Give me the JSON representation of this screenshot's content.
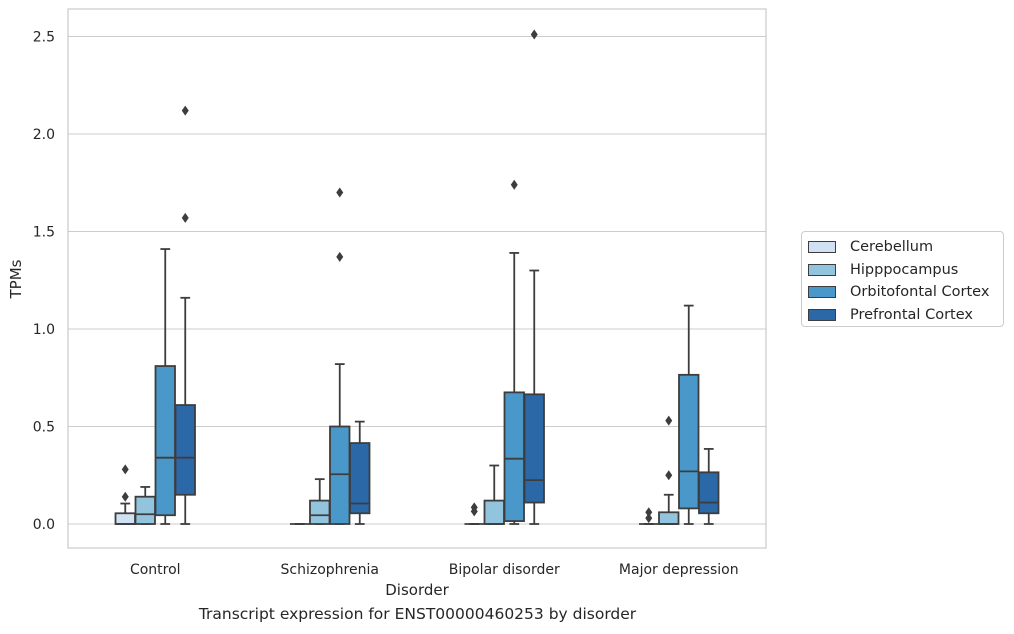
{
  "chart_data": {
    "type": "boxplot",
    "title": "Transcript expression for ENST00000460253 by disorder",
    "xlabel": "Disorder",
    "ylabel": "TPMs",
    "ylim": [
      -0.12,
      2.62
    ],
    "yticks": [
      "0.0",
      "0.5",
      "1.0",
      "1.5",
      "2.0",
      "2.5"
    ],
    "grid": true,
    "legend_placement": "right",
    "categories": [
      "Control",
      "Schizophrenia",
      "Bipolar disorder",
      "Major depression"
    ],
    "series": [
      {
        "name": "Cerebellum",
        "color": "#cfe1f2",
        "boxes": [
          {
            "whisker_low": 0.0,
            "q1": 0.0,
            "median": 0.0,
            "q3": 0.055,
            "whisker_high": 0.105,
            "outliers": [
              0.28,
              0.14
            ]
          },
          {
            "whisker_low": 0.0,
            "q1": 0.0,
            "median": 0.0,
            "q3": 0.0,
            "whisker_high": 0.0,
            "outliers": []
          },
          {
            "whisker_low": 0.0,
            "q1": 0.0,
            "median": 0.0,
            "q3": 0.0,
            "whisker_high": 0.0,
            "outliers": [
              0.085,
              0.065
            ]
          },
          {
            "whisker_low": 0.0,
            "q1": 0.0,
            "median": 0.0,
            "q3": 0.0,
            "whisker_high": 0.0,
            "outliers": [
              0.06,
              0.03
            ]
          }
        ]
      },
      {
        "name": "Hipppocampus",
        "color": "#93c4de",
        "boxes": [
          {
            "whisker_low": 0.0,
            "q1": 0.0,
            "median": 0.05,
            "q3": 0.14,
            "whisker_high": 0.19,
            "outliers": []
          },
          {
            "whisker_low": 0.0,
            "q1": 0.0,
            "median": 0.045,
            "q3": 0.12,
            "whisker_high": 0.23,
            "outliers": []
          },
          {
            "whisker_low": 0.0,
            "q1": 0.0,
            "median": 0.0,
            "q3": 0.12,
            "whisker_high": 0.3,
            "outliers": []
          },
          {
            "whisker_low": 0.0,
            "q1": 0.0,
            "median": 0.0,
            "q3": 0.06,
            "whisker_high": 0.15,
            "outliers": [
              0.53,
              0.25
            ]
          }
        ]
      },
      {
        "name": "Orbitofontal Cortex",
        "color": "#4a98c9",
        "boxes": [
          {
            "whisker_low": 0.0,
            "q1": 0.045,
            "median": 0.34,
            "q3": 0.81,
            "whisker_high": 1.41,
            "outliers": []
          },
          {
            "whisker_low": 0.0,
            "q1": 0.0,
            "median": 0.255,
            "q3": 0.5,
            "whisker_high": 0.82,
            "outliers": [
              1.37,
              1.7
            ]
          },
          {
            "whisker_low": 0.0,
            "q1": 0.015,
            "median": 0.335,
            "q3": 0.675,
            "whisker_high": 1.39,
            "outliers": [
              1.74
            ]
          },
          {
            "whisker_low": 0.0,
            "q1": 0.08,
            "median": 0.27,
            "q3": 0.765,
            "whisker_high": 1.12,
            "outliers": []
          }
        ]
      },
      {
        "name": "Prefrontal Cortex",
        "color": "#2b68a8",
        "boxes": [
          {
            "whisker_low": 0.0,
            "q1": 0.15,
            "median": 0.34,
            "q3": 0.61,
            "whisker_high": 1.16,
            "outliers": [
              1.57,
              2.12
            ]
          },
          {
            "whisker_low": 0.0,
            "q1": 0.055,
            "median": 0.105,
            "q3": 0.415,
            "whisker_high": 0.525,
            "outliers": []
          },
          {
            "whisker_low": 0.0,
            "q1": 0.11,
            "median": 0.225,
            "q3": 0.665,
            "whisker_high": 1.3,
            "outliers": [
              2.51
            ]
          },
          {
            "whisker_low": 0.0,
            "q1": 0.055,
            "median": 0.11,
            "q3": 0.265,
            "whisker_high": 0.385,
            "outliers": []
          }
        ]
      }
    ]
  }
}
